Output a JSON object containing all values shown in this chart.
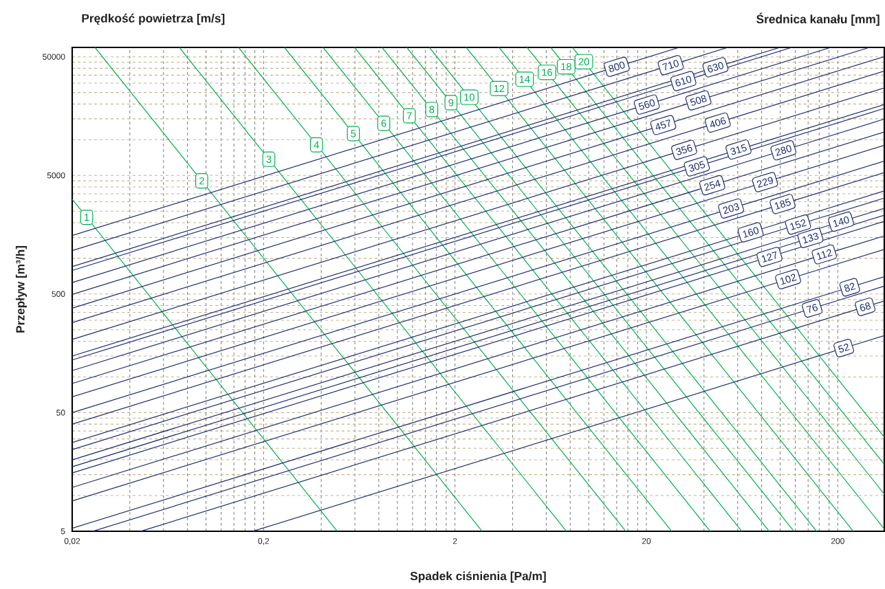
{
  "chart_data": {
    "type": "line",
    "log": "xy",
    "grid": true,
    "xlabel": "Spadek ciśnienia [Pa/m]",
    "ylabel": "Przepływ [m³/h]",
    "annotations": [
      "Prędkość powietrza [m/s]",
      "Średnica kanału [mm]",
      {
        "text": "1",
        "x": 0.0238,
        "y": 2218
      },
      {
        "text": "2",
        "x": 0.095,
        "y": 4498
      },
      {
        "text": "3",
        "x": 0.213,
        "y": 6842
      },
      {
        "text": "4",
        "x": 0.378,
        "y": 9055
      },
      {
        "text": "5",
        "x": 0.589,
        "y": 11260
      },
      {
        "text": "6",
        "x": 0.849,
        "y": 13750
      },
      {
        "text": "7",
        "x": 1.155,
        "y": 15900
      },
      {
        "text": "8",
        "x": 1.512,
        "y": 17990
      },
      {
        "text": "9",
        "x": 1.906,
        "y": 20530
      },
      {
        "text": "10",
        "x": 2.374,
        "y": 22810
      },
      {
        "text": "12",
        "x": 3.4,
        "y": 27030
      },
      {
        "text": "14",
        "x": 4.62,
        "y": 32330
      },
      {
        "text": "16",
        "x": 6.05,
        "y": 36990
      },
      {
        "text": "18",
        "x": 7.62,
        "y": 41270
      },
      {
        "text": "20",
        "x": 9.43,
        "y": 45490
      },
      {
        "text": "800",
        "x": 14,
        "y": 41190
      },
      {
        "text": "710",
        "x": 26.8,
        "y": 42520
      },
      {
        "text": "630",
        "x": 45.9,
        "y": 40810
      },
      {
        "text": "610",
        "x": 31.2,
        "y": 31210
      },
      {
        "text": "560",
        "x": 20.1,
        "y": 19790
      },
      {
        "text": "508",
        "x": 37.4,
        "y": 21460
      },
      {
        "text": "457",
        "x": 24.5,
        "y": 13300
      },
      {
        "text": "406",
        "x": 47.2,
        "y": 13940
      },
      {
        "text": "356",
        "x": 31.5,
        "y": 8212
      },
      {
        "text": "315",
        "x": 60.6,
        "y": 8256
      },
      {
        "text": "305",
        "x": 36.7,
        "y": 5956
      },
      {
        "text": "280",
        "x": 104,
        "y": 8141
      },
      {
        "text": "254",
        "x": 44.2,
        "y": 4135
      },
      {
        "text": "229",
        "x": 83.4,
        "y": 4391
      },
      {
        "text": "203",
        "x": 55.4,
        "y": 2632
      },
      {
        "text": "185",
        "x": 103,
        "y": 2870
      },
      {
        "text": "160",
        "x": 70.1,
        "y": 1658
      },
      {
        "text": "152",
        "x": 124,
        "y": 1925
      },
      {
        "text": "140",
        "x": 208,
        "y": 2038
      },
      {
        "text": "133",
        "x": 144,
        "y": 1484
      },
      {
        "text": "127",
        "x": 88,
        "y": 1028
      },
      {
        "text": "112",
        "x": 170,
        "y": 1079
      },
      {
        "text": "102",
        "x": 110,
        "y": 667
      },
      {
        "text": "82",
        "x": 231,
        "y": 570
      },
      {
        "text": "76",
        "x": 147,
        "y": 378
      },
      {
        "text": "68",
        "x": 278,
        "y": 390
      },
      {
        "text": "52",
        "x": 215,
        "y": 175
      }
    ],
    "xlim": [
      0.02,
      350
    ],
    "ylim": [
      5,
      60000
    ],
    "xticks": [
      {
        "value": 0.02,
        "label": "0,02"
      },
      {
        "value": 0.04,
        "label": null
      },
      {
        "value": 0.06,
        "label": null
      },
      {
        "value": 0.08,
        "label": null
      },
      {
        "value": 0.1,
        "label": null
      },
      {
        "value": 0.12,
        "label": null
      },
      {
        "value": 0.14,
        "label": null
      },
      {
        "value": 0.16,
        "label": null
      },
      {
        "value": 0.18,
        "label": null
      },
      {
        "value": 0.2,
        "label": "0,2"
      },
      {
        "value": 0.4,
        "label": null
      },
      {
        "value": 0.6,
        "label": null
      },
      {
        "value": 0.8,
        "label": null
      },
      {
        "value": 1,
        "label": null
      },
      {
        "value": 1.2,
        "label": null
      },
      {
        "value": 1.4,
        "label": null
      },
      {
        "value": 1.6,
        "label": null
      },
      {
        "value": 1.8,
        "label": null
      },
      2,
      {
        "value": 4,
        "label": null
      },
      {
        "value": 6,
        "label": null
      },
      {
        "value": 8,
        "label": null
      },
      {
        "value": 10,
        "label": null
      },
      {
        "value": 12,
        "label": null
      },
      {
        "value": 14,
        "label": null
      },
      {
        "value": 16,
        "label": null
      },
      {
        "value": 18,
        "label": null
      },
      20,
      {
        "value": 40,
        "label": null
      },
      {
        "value": 60,
        "label": null
      },
      {
        "value": 80,
        "label": null
      },
      {
        "value": 100,
        "label": null
      },
      {
        "value": 120,
        "label": null
      },
      {
        "value": 140,
        "label": null
      },
      {
        "value": 160,
        "label": null
      },
      {
        "value": 180,
        "label": null
      },
      200
    ],
    "yticks": [
      5,
      {
        "value": 10,
        "label": null
      },
      {
        "value": 15,
        "label": null
      },
      {
        "value": 20,
        "label": null
      },
      {
        "value": 25,
        "label": null
      },
      {
        "value": 30,
        "label": null
      },
      {
        "value": 35,
        "label": null
      },
      {
        "value": 40,
        "label": null
      },
      {
        "value": 45,
        "label": null
      },
      50,
      {
        "value": 100,
        "label": null
      },
      {
        "value": 150,
        "label": null
      },
      {
        "value": 200,
        "label": null
      },
      {
        "value": 250,
        "label": null
      },
      {
        "value": 300,
        "label": null
      },
      {
        "value": 350,
        "label": null
      },
      {
        "value": 400,
        "label": null
      },
      {
        "value": 450,
        "label": null
      },
      500,
      {
        "value": 1000,
        "label": null
      },
      {
        "value": 1500,
        "label": null
      },
      {
        "value": 2000,
        "label": null
      },
      {
        "value": 2500,
        "label": null
      },
      {
        "value": 3000,
        "label": null
      },
      {
        "value": 3500,
        "label": null
      },
      {
        "value": 4000,
        "label": null
      },
      {
        "value": 4500,
        "label": null
      },
      5000,
      {
        "value": 10000,
        "label": null
      },
      {
        "value": 15000,
        "label": null
      },
      {
        "value": 20000,
        "label": null
      },
      {
        "value": 25000,
        "label": null
      },
      {
        "value": 30000,
        "label": null
      },
      {
        "value": 35000,
        "label": null
      },
      {
        "value": 40000,
        "label": null
      },
      {
        "value": 45000,
        "label": null
      },
      50000
    ],
    "series": [
      {
        "color": "#00b050",
        "x": [
          0.02,
          0.0238,
          0.485
        ],
        "values": [
          3150,
          2218,
          5
        ]
      },
      {
        "color": "#00b050",
        "x": [
          0.0263,
          0.095,
          2.77
        ],
        "values": [
          60000,
          4498,
          5
        ]
      },
      {
        "color": "#00b050",
        "x": [
          0.0726,
          0.213,
          7.64
        ],
        "values": [
          60000,
          6842,
          5
        ]
      },
      {
        "color": "#00b050",
        "x": [
          0.148,
          0.378,
          15.6
        ],
        "values": [
          60000,
          9055,
          5
        ]
      },
      {
        "color": "#00b050",
        "x": [
          0.257,
          0.589,
          27.1
        ],
        "values": [
          60000,
          11260,
          5
        ]
      },
      {
        "color": "#00b050",
        "x": [
          0.409,
          0.849,
          43.1
        ],
        "values": [
          60000,
          13750,
          5
        ]
      },
      {
        "color": "#00b050",
        "x": [
          0.598,
          1.155,
          63
        ],
        "values": [
          60000,
          15900,
          5
        ]
      },
      {
        "color": "#00b050",
        "x": [
          0.832,
          1.512,
          87.6
        ],
        "values": [
          60000,
          17990,
          5
        ]
      },
      {
        "color": "#00b050",
        "x": [
          1.12,
          1.906,
          118
        ],
        "values": [
          60000,
          20530,
          5
        ]
      },
      {
        "color": "#00b050",
        "x": [
          1.47,
          2.374,
          155
        ],
        "values": [
          60000,
          22810,
          5
        ]
      },
      {
        "color": "#00b050",
        "x": [
          2.29,
          3.4,
          241
        ],
        "values": [
          60000,
          27030,
          5
        ]
      },
      {
        "color": "#00b050",
        "x": [
          3.4,
          4.62,
          350
        ],
        "values": [
          60000,
          32330,
          5.23
        ]
      },
      {
        "color": "#00b050",
        "x": [
          4.76,
          6.05,
          350
        ],
        "values": [
          60000,
          36990,
          10.3
        ]
      },
      {
        "color": "#00b050",
        "x": [
          6.33,
          7.62,
          350
        ],
        "values": [
          60000,
          41270,
          18.3
        ]
      },
      {
        "color": "#00b050",
        "x": [
          8.22,
          9.43,
          350
        ],
        "values": [
          60000,
          45490,
          31.1
        ]
      },
      {
        "color": "#1f2d6e",
        "x": [
          0.02,
          14,
          29.7
        ],
        "values": [
          1556,
          41190,
          60000
        ]
      },
      {
        "color": "#1f2d6e",
        "x": [
          0.02,
          26.8,
          53.3
        ],
        "values": [
          1162,
          42520,
          60000
        ]
      },
      {
        "color": "#1f2d6e",
        "x": [
          0.02,
          45.9,
          99.7
        ],
        "values": [
          852,
          40810,
          60000
        ]
      },
      {
        "color": "#1f2d6e",
        "x": [
          0.02,
          31.2,
          115
        ],
        "values": [
          790,
          31210,
          60000
        ]
      },
      {
        "color": "#1f2d6e",
        "x": [
          0.02,
          20.1,
          184
        ],
        "values": [
          625,
          19790,
          60000
        ]
      },
      {
        "color": "#1f2d6e",
        "x": [
          0.02,
          37.4,
          293
        ],
        "values": [
          496,
          21460,
          60000
        ]
      },
      {
        "color": "#1f2d6e",
        "x": [
          0.02,
          24.5,
          350
        ],
        "values": [
          380,
          13300,
          50200
        ]
      },
      {
        "color": "#1f2d6e",
        "x": [
          0.02,
          47.2,
          350
        ],
        "values": [
          287,
          13940,
          37910
        ]
      },
      {
        "color": "#1f2d6e",
        "x": [
          0.02,
          31.5,
          350
        ],
        "values": [
          207,
          8212,
          27350
        ]
      },
      {
        "color": "#1f2d6e",
        "x": [
          0.02,
          60.6,
          350
        ],
        "values": [
          150,
          8256,
          19800
        ]
      },
      {
        "color": "#1f2d6e",
        "x": [
          0.02,
          36.7,
          350
        ],
        "values": [
          139,
          5956,
          18360
        ]
      },
      {
        "color": "#1f2d6e",
        "x": [
          0.02,
          104,
          350
        ],
        "values": [
          113,
          8141,
          14930
        ]
      },
      {
        "color": "#1f2d6e",
        "x": [
          0.02,
          44.2,
          350
        ],
        "values": [
          88,
          4135,
          11620
        ]
      },
      {
        "color": "#1f2d6e",
        "x": [
          0.02,
          83.4,
          350
        ],
        "values": [
          68,
          4391,
          8980
        ]
      },
      {
        "color": "#1f2d6e",
        "x": [
          0.02,
          55.4,
          350
        ],
        "values": [
          50,
          2632,
          6600
        ]
      },
      {
        "color": "#1f2d6e",
        "x": [
          0.02,
          103,
          350
        ],
        "values": [
          40,
          2870,
          5280
        ]
      },
      {
        "color": "#1f2d6e",
        "x": [
          0.02,
          70.1,
          350
        ],
        "values": [
          28,
          1658,
          3700
        ]
      },
      {
        "color": "#1f2d6e",
        "x": [
          0.02,
          124,
          350
        ],
        "values": [
          24.4,
          1925,
          3220
        ]
      },
      {
        "color": "#1f2d6e",
        "x": [
          0.02,
          208,
          350
        ],
        "values": [
          20,
          2038,
          2640
        ]
      },
      {
        "color": "#1f2d6e",
        "x": [
          0.02,
          144,
          350
        ],
        "values": [
          17.5,
          1484,
          2310
        ]
      },
      {
        "color": "#1f2d6e",
        "x": [
          0.02,
          88,
          350
        ],
        "values": [
          15.5,
          1028,
          2050
        ]
      },
      {
        "color": "#1f2d6e",
        "x": [
          0.02,
          170,
          350
        ],
        "values": [
          11.7,
          1079,
          1546
        ]
      },
      {
        "color": "#1f2d6e",
        "x": [
          0.02,
          110,
          350
        ],
        "values": [
          9,
          667,
          1190
        ]
      },
      {
        "color": "#1f2d6e",
        "x": [
          0.02,
          231,
          350
        ],
        "values": [
          5.3,
          570,
          700
        ]
      },
      {
        "color": "#1f2d6e",
        "x": [
          0.0257,
          147,
          350
        ],
        "values": [
          5,
          378,
          583
        ]
      },
      {
        "color": "#1f2d6e",
        "x": [
          0.0457,
          278,
          350
        ],
        "values": [
          5,
          390,
          437
        ]
      },
      {
        "color": "#1f2d6e",
        "x": [
          0.176,
          215,
          350
        ],
        "values": [
          5,
          175,
          223
        ]
      }
    ]
  }
}
